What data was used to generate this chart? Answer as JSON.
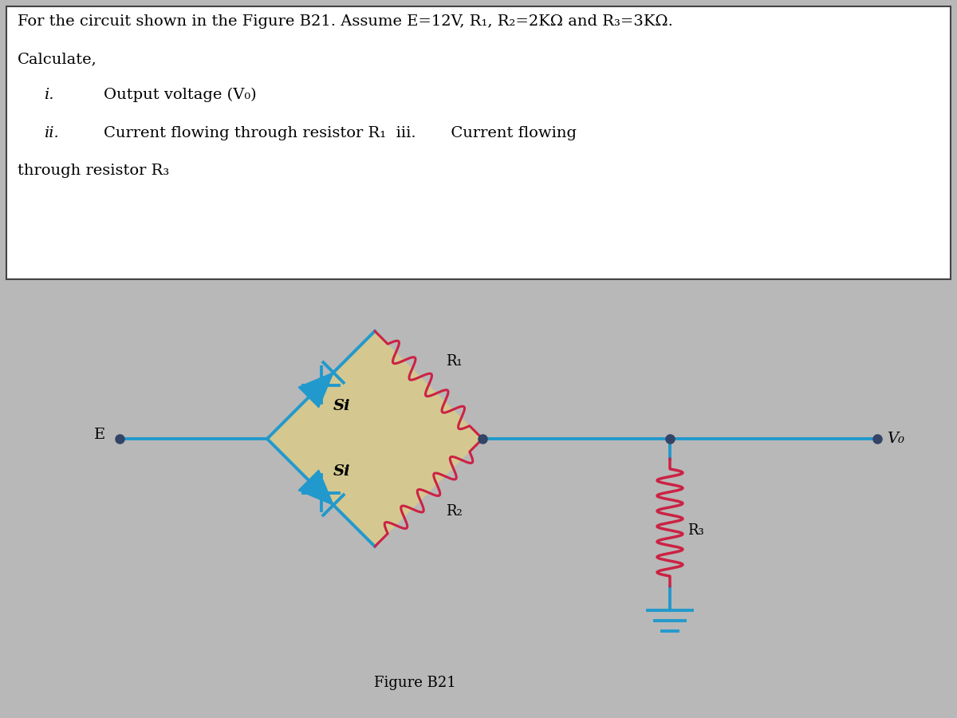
{
  "bg_color": "#b8b8b8",
  "panel_color": "#d4d4d4",
  "box_color": "#ffffff",
  "box_border_color": "#444444",
  "wire_color_blue": "#2299cc",
  "wire_color_red": "#cc2244",
  "wire_lw": 2.8,
  "resistor_lw": 2.2,
  "title_line1": "For the circuit shown in the Figure B21. Assume E=12V, R₁, R₂=2KΩ and R₃=3KΩ.",
  "title_line2": "Calculate,",
  "item_i_label": "i.",
  "item_i_text": "Output voltage (V₀)",
  "item_ii_label": "ii.",
  "item_ii_text": "Current flowing through resistor R₁  iii.       Current flowing",
  "item_iii_text": "through resistor R₃",
  "fig_label": "Figure B21",
  "label_E": "E",
  "label_Vo": "V₀",
  "label_Si_top": "Si",
  "label_Si_bot": "Si",
  "label_R1": "R₁",
  "label_R2": "R₂",
  "label_R3": "R₃",
  "diamond_fill": "#d4c890",
  "font_size_title": 14,
  "font_size_circuit": 13
}
